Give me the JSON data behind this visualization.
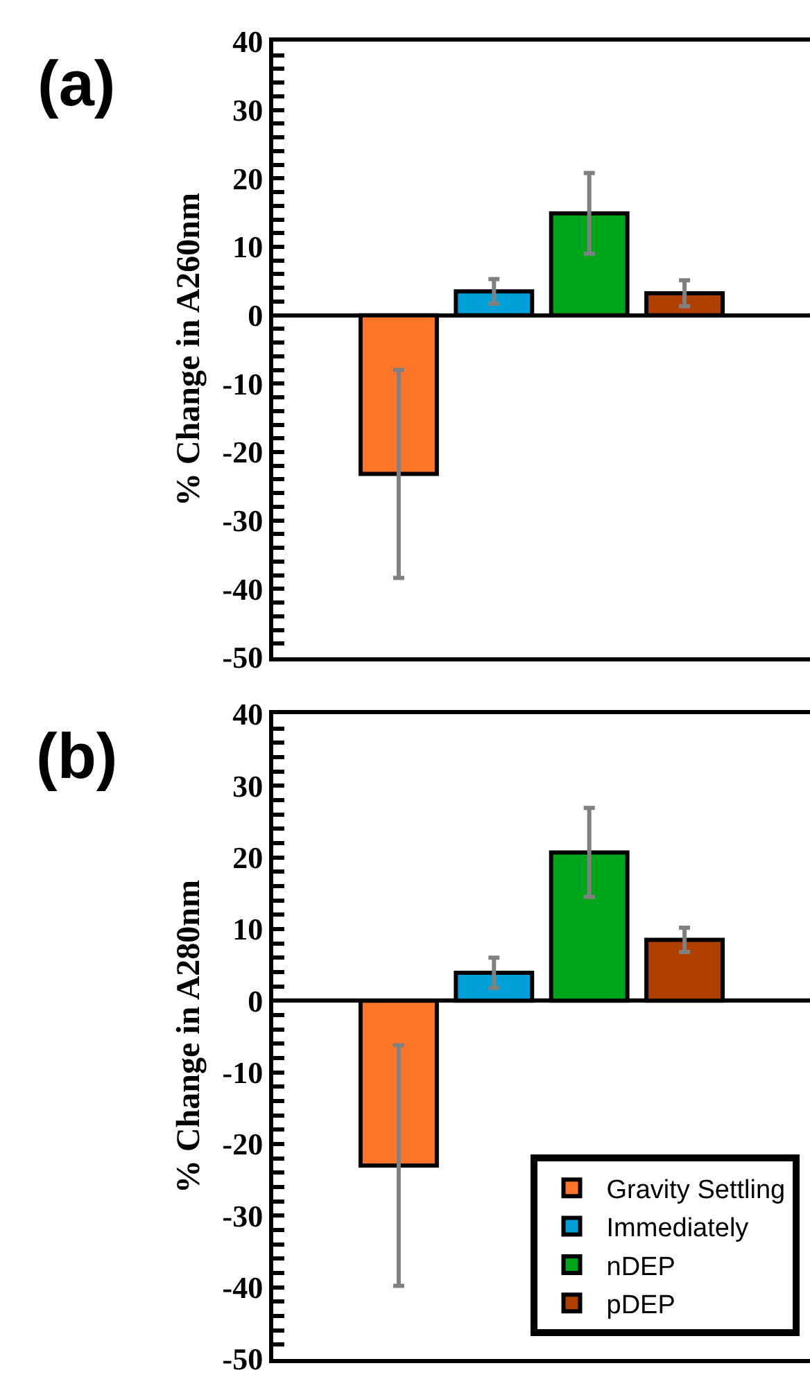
{
  "chart_data": [
    {
      "type": "bar",
      "title": "(a)",
      "ylabel": "% Change in A260nm",
      "categories": [
        null
      ],
      "legend": false,
      "ylim": [
        -50,
        40
      ],
      "yticks": [
        -50,
        {
          "value": -48,
          "label": null
        },
        {
          "value": -46,
          "label": null
        },
        {
          "value": -44,
          "label": null
        },
        {
          "value": -42,
          "label": null
        },
        -40,
        {
          "value": -38,
          "label": null
        },
        {
          "value": -36,
          "label": null
        },
        {
          "value": -34,
          "label": null
        },
        {
          "value": -32,
          "label": null
        },
        -30,
        {
          "value": -28,
          "label": null
        },
        {
          "value": -26,
          "label": null
        },
        {
          "value": -24,
          "label": null
        },
        {
          "value": -22,
          "label": null
        },
        -20,
        {
          "value": -18,
          "label": null
        },
        {
          "value": -16,
          "label": null
        },
        {
          "value": -14,
          "label": null
        },
        {
          "value": -12,
          "label": null
        },
        -10,
        {
          "value": -8,
          "label": null
        },
        {
          "value": -6,
          "label": null
        },
        {
          "value": -4,
          "label": null
        },
        {
          "value": -2,
          "label": null
        },
        0,
        {
          "value": 2,
          "label": null
        },
        {
          "value": 4,
          "label": null
        },
        {
          "value": 6,
          "label": null
        },
        {
          "value": 8,
          "label": null
        },
        10,
        {
          "value": 12,
          "label": null
        },
        {
          "value": 14,
          "label": null
        },
        {
          "value": 16,
          "label": null
        },
        {
          "value": 18,
          "label": null
        },
        20,
        {
          "value": 22,
          "label": null
        },
        {
          "value": 24,
          "label": null
        },
        {
          "value": 26,
          "label": null
        },
        {
          "value": 28,
          "label": null
        },
        30,
        {
          "value": 32,
          "label": null
        },
        {
          "value": 34,
          "label": null
        },
        {
          "value": 36,
          "label": null
        },
        {
          "value": 38,
          "label": null
        },
        40
      ],
      "series": [
        {
          "color": "#fe7428",
          "values": [
            -23.2
          ],
          "errors": [
            15.2
          ]
        },
        {
          "color": "#00a0d8",
          "values": [
            3.5
          ],
          "errors": [
            1.8
          ]
        },
        {
          "color": "#00a619",
          "values": [
            14.9
          ],
          "errors": [
            5.9
          ]
        },
        {
          "color": "#b04000",
          "values": [
            3.2
          ],
          "errors": [
            1.9
          ]
        }
      ]
    },
    {
      "type": "bar",
      "title": "(b)",
      "ylabel": "% Change in A280nm",
      "categories": [
        null
      ],
      "legend": "bottom right",
      "ylim": [
        -50,
        40
      ],
      "yticks": [
        -50,
        {
          "value": -48,
          "label": null
        },
        {
          "value": -46,
          "label": null
        },
        {
          "value": -44,
          "label": null
        },
        {
          "value": -42,
          "label": null
        },
        -40,
        {
          "value": -38,
          "label": null
        },
        {
          "value": -36,
          "label": null
        },
        {
          "value": -34,
          "label": null
        },
        {
          "value": -32,
          "label": null
        },
        -30,
        {
          "value": -28,
          "label": null
        },
        {
          "value": -26,
          "label": null
        },
        {
          "value": -24,
          "label": null
        },
        {
          "value": -22,
          "label": null
        },
        -20,
        {
          "value": -18,
          "label": null
        },
        {
          "value": -16,
          "label": null
        },
        {
          "value": -14,
          "label": null
        },
        {
          "value": -12,
          "label": null
        },
        -10,
        {
          "value": -8,
          "label": null
        },
        {
          "value": -6,
          "label": null
        },
        {
          "value": -4,
          "label": null
        },
        {
          "value": -2,
          "label": null
        },
        0,
        {
          "value": 2,
          "label": null
        },
        {
          "value": 4,
          "label": null
        },
        {
          "value": 6,
          "label": null
        },
        {
          "value": 8,
          "label": null
        },
        10,
        {
          "value": 12,
          "label": null
        },
        {
          "value": 14,
          "label": null
        },
        {
          "value": 16,
          "label": null
        },
        {
          "value": 18,
          "label": null
        },
        20,
        {
          "value": 22,
          "label": null
        },
        {
          "value": 24,
          "label": null
        },
        {
          "value": 26,
          "label": null
        },
        {
          "value": 28,
          "label": null
        },
        30,
        {
          "value": 32,
          "label": null
        },
        {
          "value": 34,
          "label": null
        },
        {
          "value": 36,
          "label": null
        },
        {
          "value": 38,
          "label": null
        },
        40
      ],
      "series": [
        {
          "name": "Gravity Settling",
          "color": "#fe7428",
          "values": [
            -23.0
          ],
          "errors": [
            16.8
          ]
        },
        {
          "name": "Immediately",
          "color": "#00a0d8",
          "values": [
            3.9
          ],
          "errors": [
            2.1
          ]
        },
        {
          "name": "nDEP",
          "color": "#00a619",
          "values": [
            20.7
          ],
          "errors": [
            6.2
          ]
        },
        {
          "name": "pDEP",
          "color": "#b04000",
          "values": [
            8.5
          ],
          "errors": [
            1.7
          ]
        }
      ]
    }
  ]
}
